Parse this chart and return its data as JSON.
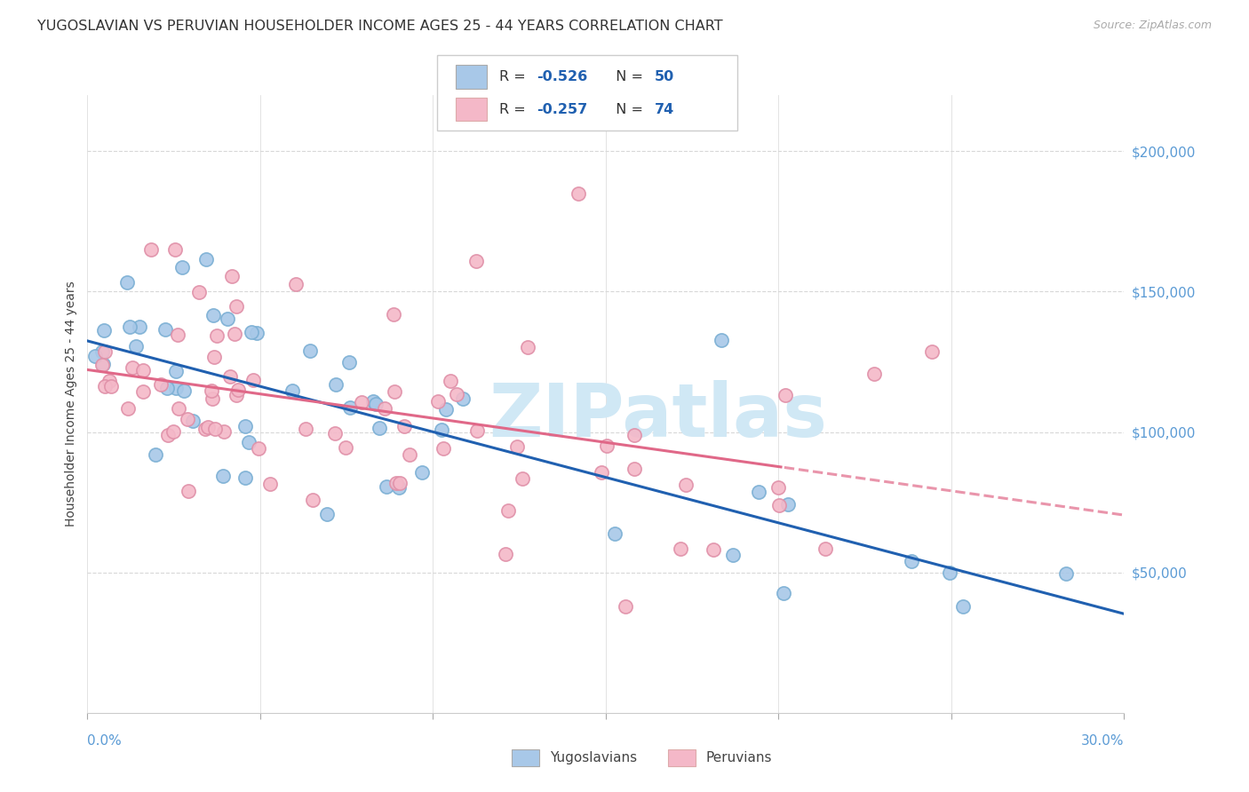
{
  "title": "YUGOSLAVIAN VS PERUVIAN HOUSEHOLDER INCOME AGES 25 - 44 YEARS CORRELATION CHART",
  "source": "Source: ZipAtlas.com",
  "ylabel": "Householder Income Ages 25 - 44 years",
  "xlim": [
    0.0,
    0.3
  ],
  "ylim": [
    0,
    220000
  ],
  "yug_color": "#a8c8e8",
  "yug_edge_color": "#7bafd4",
  "per_color": "#f4b8c8",
  "per_edge_color": "#e090a8",
  "yug_line_color": "#2060b0",
  "per_line_color": "#e06888",
  "background_color": "#ffffff",
  "grid_color": "#d8d8d8",
  "tick_color": "#5b9bd5",
  "legend_r_yug": "-0.526",
  "legend_n_yug": "50",
  "legend_r_per": "-0.257",
  "legend_n_per": "74",
  "watermark_color": "#d0e8f5",
  "title_fontsize": 11.5,
  "ylabel_fontsize": 10,
  "tick_fontsize": 11
}
